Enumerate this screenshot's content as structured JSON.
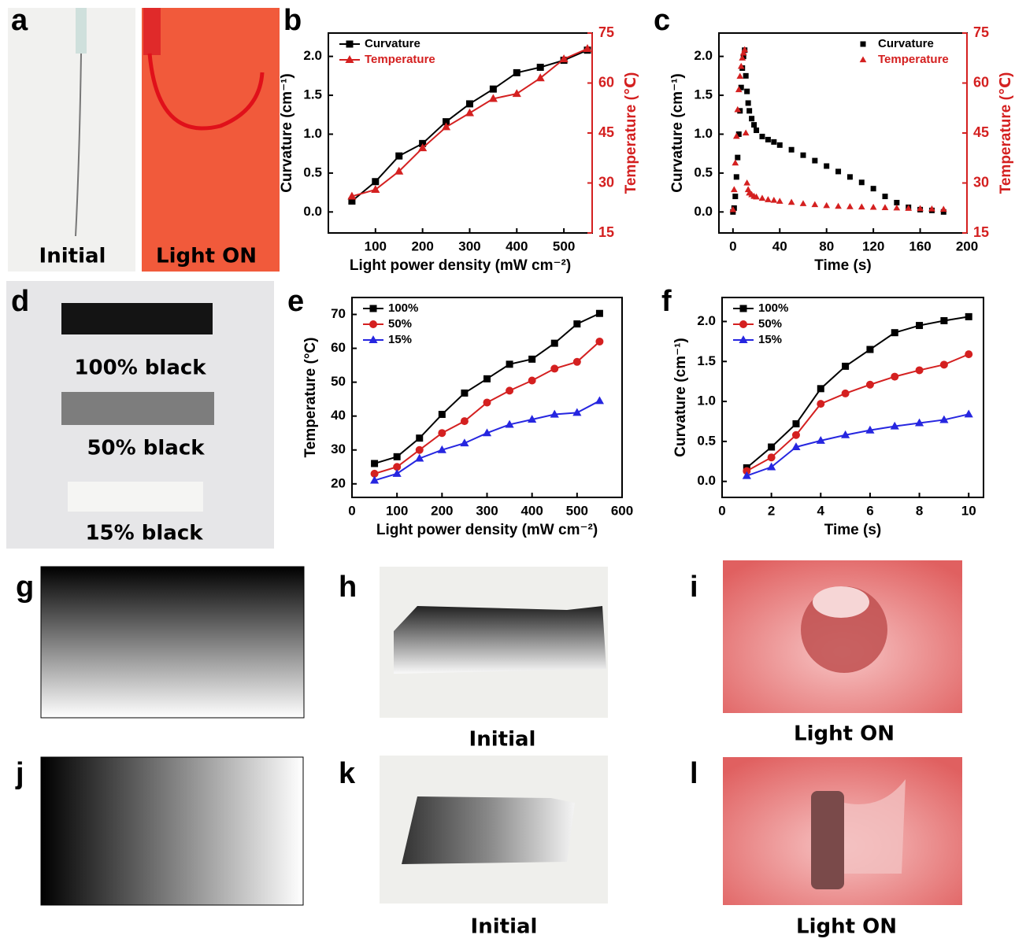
{
  "panel_labels": [
    "a",
    "b",
    "c",
    "d",
    "e",
    "f",
    "g",
    "h",
    "i",
    "j",
    "k",
    "l"
  ],
  "photos": {
    "a_left": "Initial",
    "a_right": "Light ON",
    "d": [
      "100% black",
      "50% black",
      "15% black"
    ],
    "h": "Initial",
    "i": "Light ON",
    "k": "Initial",
    "l": "Light ON"
  },
  "chart_data": [
    {
      "type": "line",
      "xlabel": "Light power density (mW cm⁻²)",
      "ylabel": "Curvature (cm⁻¹)",
      "y2label": "Temperature (℃)",
      "legend": "upper left",
      "x": [
        50,
        100,
        150,
        200,
        250,
        300,
        350,
        400,
        450,
        500,
        550
      ],
      "xlim": [
        0,
        560
      ],
      "xticks": [
        100,
        200,
        300,
        400,
        500
      ],
      "ylim": [
        -0.27,
        2.3
      ],
      "yticks": [
        {
          "value": 0,
          "label": "0.0"
        },
        0.5,
        {
          "value": 1,
          "label": "1.0"
        },
        1.5,
        {
          "value": 2,
          "label": "2.0"
        }
      ],
      "y2lim": [
        15,
        75
      ],
      "y2ticks": [
        15,
        30,
        45,
        60,
        75
      ],
      "series": [
        {
          "name": "Curvature",
          "color": "#000000",
          "marker": "square",
          "values": [
            0.14,
            0.39,
            0.72,
            0.88,
            1.16,
            1.39,
            1.58,
            1.79,
            1.86,
            1.95,
            2.08
          ]
        },
        {
          "name": "Temperature",
          "color": "#d42020",
          "marker": "triangle",
          "axis": "y2",
          "values": [
            26,
            28,
            33.5,
            40.5,
            46.8,
            51,
            55.3,
            56.8,
            61.5,
            67.2,
            70.3
          ]
        }
      ]
    },
    {
      "type": "scatter",
      "xlabel": "Time (s)",
      "ylabel": "Curvature (cm⁻¹)",
      "y2label": "Temperature (℃)",
      "legend": "upper right",
      "x": [
        0,
        1,
        2,
        3,
        4,
        5,
        6,
        7,
        8,
        9,
        10,
        11,
        12,
        13,
        14,
        16,
        18,
        20,
        25,
        30,
        35,
        40,
        50,
        60,
        70,
        80,
        90,
        100,
        110,
        120,
        130,
        140,
        150,
        160,
        170,
        180
      ],
      "xlim": [
        -12,
        200
      ],
      "xticks": [
        0,
        40,
        80,
        120,
        160,
        200
      ],
      "ylim": [
        -0.27,
        2.3
      ],
      "yticks": [
        {
          "value": 0,
          "label": "0.0"
        },
        0.5,
        {
          "value": 1,
          "label": "1.0"
        },
        1.5,
        {
          "value": 2,
          "label": "2.0"
        }
      ],
      "y2lim": [
        15,
        75
      ],
      "y2ticks": [
        15,
        30,
        45,
        60,
        75
      ],
      "series": [
        {
          "name": "Curvature",
          "color": "#000000",
          "marker": "square",
          "values": [
            0,
            0.05,
            0.2,
            0.45,
            0.7,
            1.0,
            1.3,
            1.6,
            1.85,
            2.0,
            2.08,
            1.75,
            1.55,
            1.4,
            1.3,
            1.2,
            1.12,
            1.05,
            0.97,
            0.93,
            0.9,
            0.86,
            0.8,
            0.73,
            0.66,
            0.59,
            0.52,
            0.45,
            0.38,
            0.3,
            0.2,
            0.12,
            0.06,
            0.03,
            0.02,
            0
          ]
        },
        {
          "name": "Temperature",
          "color": "#d42020",
          "marker": "triangle",
          "axis": "y2",
          "values": [
            22,
            28,
            36,
            44,
            52,
            58,
            62,
            65,
            67.5,
            69,
            70,
            45,
            30,
            28,
            27,
            26.5,
            26,
            25.8,
            25.4,
            25,
            24.8,
            24.5,
            24.2,
            23.8,
            23.5,
            23.2,
            23,
            22.9,
            22.8,
            22.7,
            22.6,
            22.5,
            22.4,
            22.3,
            22.2,
            22.1
          ]
        }
      ]
    },
    {
      "type": "line",
      "xlabel": "Light power density (mW cm⁻²)",
      "ylabel": "Temperature (°C)",
      "legend": "upper left",
      "x": [
        50,
        100,
        150,
        200,
        250,
        300,
        350,
        400,
        450,
        500,
        550
      ],
      "xlim": [
        0,
        600
      ],
      "xticks": [
        0,
        100,
        200,
        300,
        400,
        500,
        600
      ],
      "ylim": [
        16,
        75
      ],
      "yticks": [
        20,
        30,
        40,
        50,
        60,
        70
      ],
      "series": [
        {
          "name": "100%",
          "color": "#000000",
          "marker": "square",
          "values": [
            26,
            28,
            33.5,
            40.5,
            46.8,
            51,
            55.3,
            56.8,
            61.5,
            67.2,
            70.3
          ]
        },
        {
          "name": "50%",
          "color": "#d42020",
          "marker": "circle",
          "values": [
            23,
            25,
            30,
            35,
            38.5,
            44,
            47.5,
            50.5,
            54,
            56,
            62
          ]
        },
        {
          "name": "15%",
          "color": "#2626e0",
          "marker": "triangle",
          "values": [
            21,
            23,
            27.5,
            30,
            32,
            35,
            37.5,
            39,
            40.5,
            41,
            44.5
          ]
        }
      ]
    },
    {
      "type": "line",
      "xlabel": "Time (s)",
      "ylabel": "Curvature (cm⁻¹)",
      "legend": "upper left",
      "x": [
        1,
        2,
        3,
        4,
        5,
        6,
        7,
        8,
        9,
        10
      ],
      "xlim": [
        0,
        10.6
      ],
      "xticks": [
        0,
        2,
        4,
        6,
        8,
        10
      ],
      "ylim": [
        -0.2,
        2.3
      ],
      "yticks": [
        {
          "value": 0,
          "label": "0.0"
        },
        0.5,
        {
          "value": 1,
          "label": "1.0"
        },
        1.5,
        {
          "value": 2,
          "label": "2.0"
        }
      ],
      "series": [
        {
          "name": "100%",
          "color": "#000000",
          "marker": "square",
          "values": [
            0.17,
            0.43,
            0.72,
            1.16,
            1.44,
            1.65,
            1.86,
            1.95,
            2.01,
            2.06
          ]
        },
        {
          "name": "50%",
          "color": "#d42020",
          "marker": "circle",
          "values": [
            0.13,
            0.3,
            0.58,
            0.97,
            1.1,
            1.21,
            1.31,
            1.39,
            1.46,
            1.59
          ]
        },
        {
          "name": "15%",
          "color": "#2626e0",
          "marker": "triangle",
          "values": [
            0.07,
            0.18,
            0.43,
            0.51,
            0.58,
            0.64,
            0.69,
            0.73,
            0.77,
            0.84
          ]
        }
      ]
    }
  ]
}
